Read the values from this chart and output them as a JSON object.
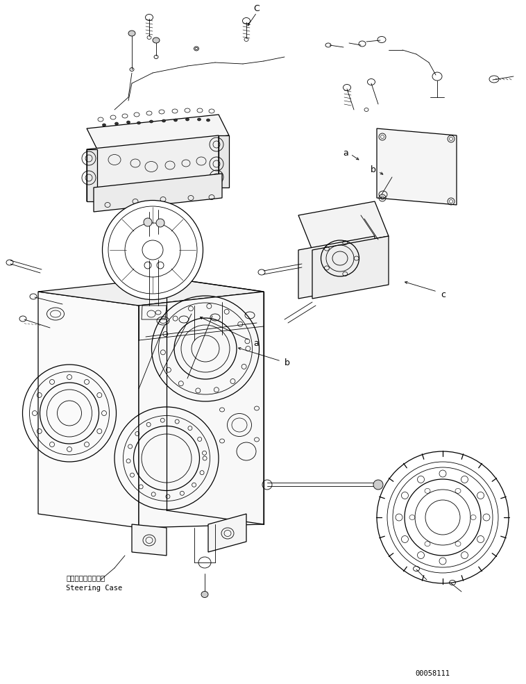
{
  "bg_color": "#ffffff",
  "lc": "#000000",
  "fig_width": 7.58,
  "fig_height": 9.85,
  "dpi": 100,
  "label_steering_jp": "ステアリングケース",
  "label_steering_en": "Steering Case",
  "part_number": "00058111",
  "lw_thin": 0.6,
  "lw_med": 0.9,
  "lw_thick": 1.2
}
